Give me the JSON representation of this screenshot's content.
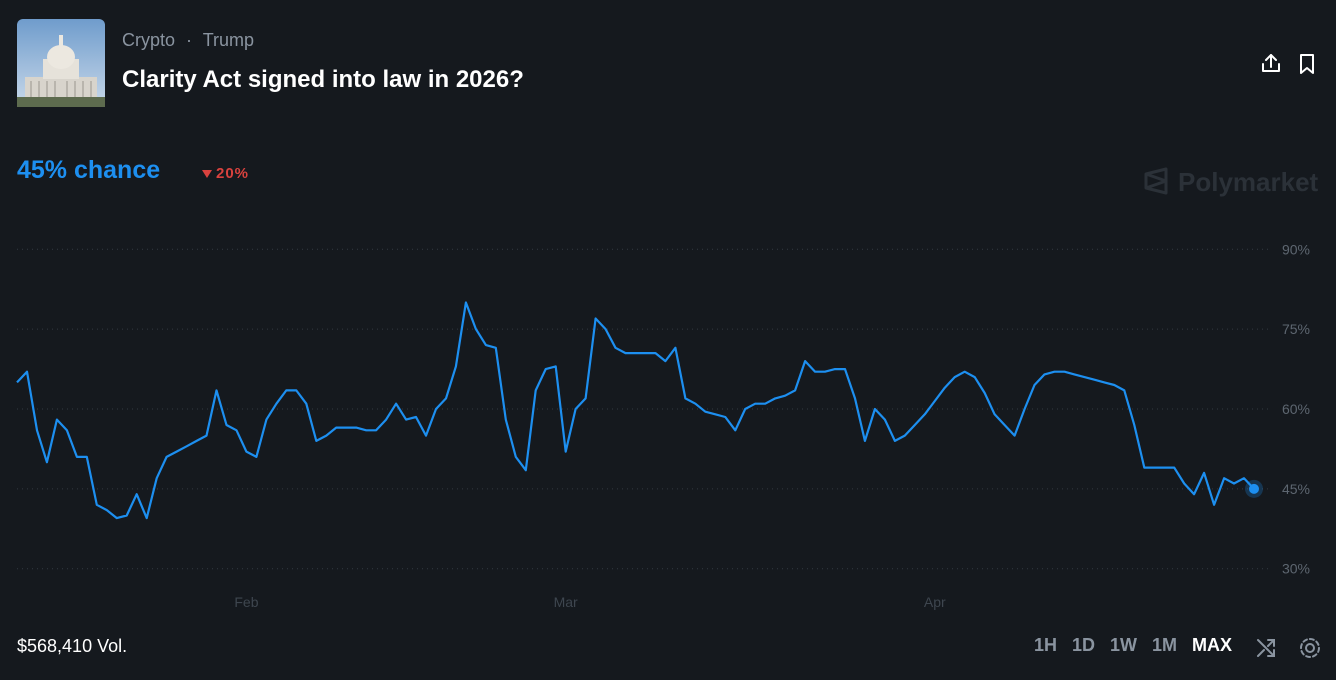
{
  "header": {
    "category": "Crypto",
    "separator": "·",
    "tag": "Trump",
    "title": "Clarity Act signed into law in 2026?"
  },
  "headline": "45% chance",
  "change": "20%",
  "watermark": "Polymarket",
  "volume": "$568,410 Vol.",
  "ranges": [
    "1H",
    "1D",
    "1W",
    "1M",
    "MAX"
  ],
  "active_range": "MAX",
  "chart_data": {
    "type": "line",
    "color": "#1d8ff0",
    "grid": true,
    "categories": [
      null,
      null,
      null,
      null,
      null,
      null,
      null,
      null,
      null,
      null,
      null,
      null,
      null,
      null,
      null,
      null,
      null,
      null,
      null,
      null,
      null,
      null,
      null,
      "Feb",
      null,
      null,
      null,
      null,
      null,
      null,
      null,
      null,
      null,
      null,
      null,
      null,
      null,
      null,
      null,
      null,
      null,
      null,
      null,
      null,
      null,
      null,
      null,
      null,
      null,
      null,
      null,
      null,
      null,
      null,
      null,
      "Mar",
      null,
      null,
      null,
      null,
      null,
      null,
      null,
      null,
      null,
      null,
      null,
      null,
      null,
      null,
      null,
      null,
      null,
      null,
      null,
      null,
      null,
      null,
      null,
      null,
      null,
      null,
      null,
      null,
      null,
      null,
      null,
      null,
      null,
      null,
      null,
      null,
      "Apr",
      null,
      null,
      null,
      null,
      null,
      null,
      null,
      null,
      null,
      null,
      null,
      null,
      null,
      null,
      null,
      null,
      null,
      null,
      null,
      null,
      null,
      null,
      null,
      null,
      null,
      null,
      null,
      null,
      null,
      null,
      null,
      null
    ],
    "values": [
      65,
      67,
      56,
      50,
      58,
      56,
      51,
      51,
      42,
      41,
      39.5,
      40,
      44,
      39.5,
      47,
      51,
      52,
      53,
      54,
      55,
      63.5,
      57,
      56,
      52,
      51,
      58,
      61,
      63.5,
      63.5,
      61,
      54,
      55,
      56.5,
      56.5,
      56.5,
      56,
      56,
      58,
      61,
      58,
      58.5,
      55,
      60,
      62,
      68,
      80,
      75,
      72,
      71.5,
      58,
      51,
      48.5,
      63.5,
      67.5,
      68,
      52,
      60,
      62,
      77,
      75,
      71.5,
      70.5,
      70.5,
      70.5,
      70.5,
      69,
      71.5,
      62,
      61,
      59.5,
      59,
      58.5,
      56,
      60,
      61,
      61,
      62,
      62.5,
      63.5,
      69,
      67,
      67,
      67.5,
      67.5,
      62,
      54,
      60,
      58,
      54,
      55,
      57,
      59,
      61.5,
      64,
      66,
      67,
      66,
      63,
      59,
      57,
      55,
      60,
      64.5,
      66.5,
      67,
      67,
      66.5,
      66,
      65.5,
      65,
      64.5,
      63.5,
      57,
      49,
      49,
      49,
      49,
      46,
      44,
      48,
      42,
      47,
      46,
      47,
      45
    ],
    "ylim": [
      26,
      94
    ],
    "yticks": [
      {
        "value": 30,
        "label": "30%"
      },
      {
        "value": 45,
        "label": "45%"
      },
      {
        "value": 60,
        "label": "60%"
      },
      {
        "value": 75,
        "label": "75%"
      },
      {
        "value": 90,
        "label": "90%"
      }
    ]
  }
}
